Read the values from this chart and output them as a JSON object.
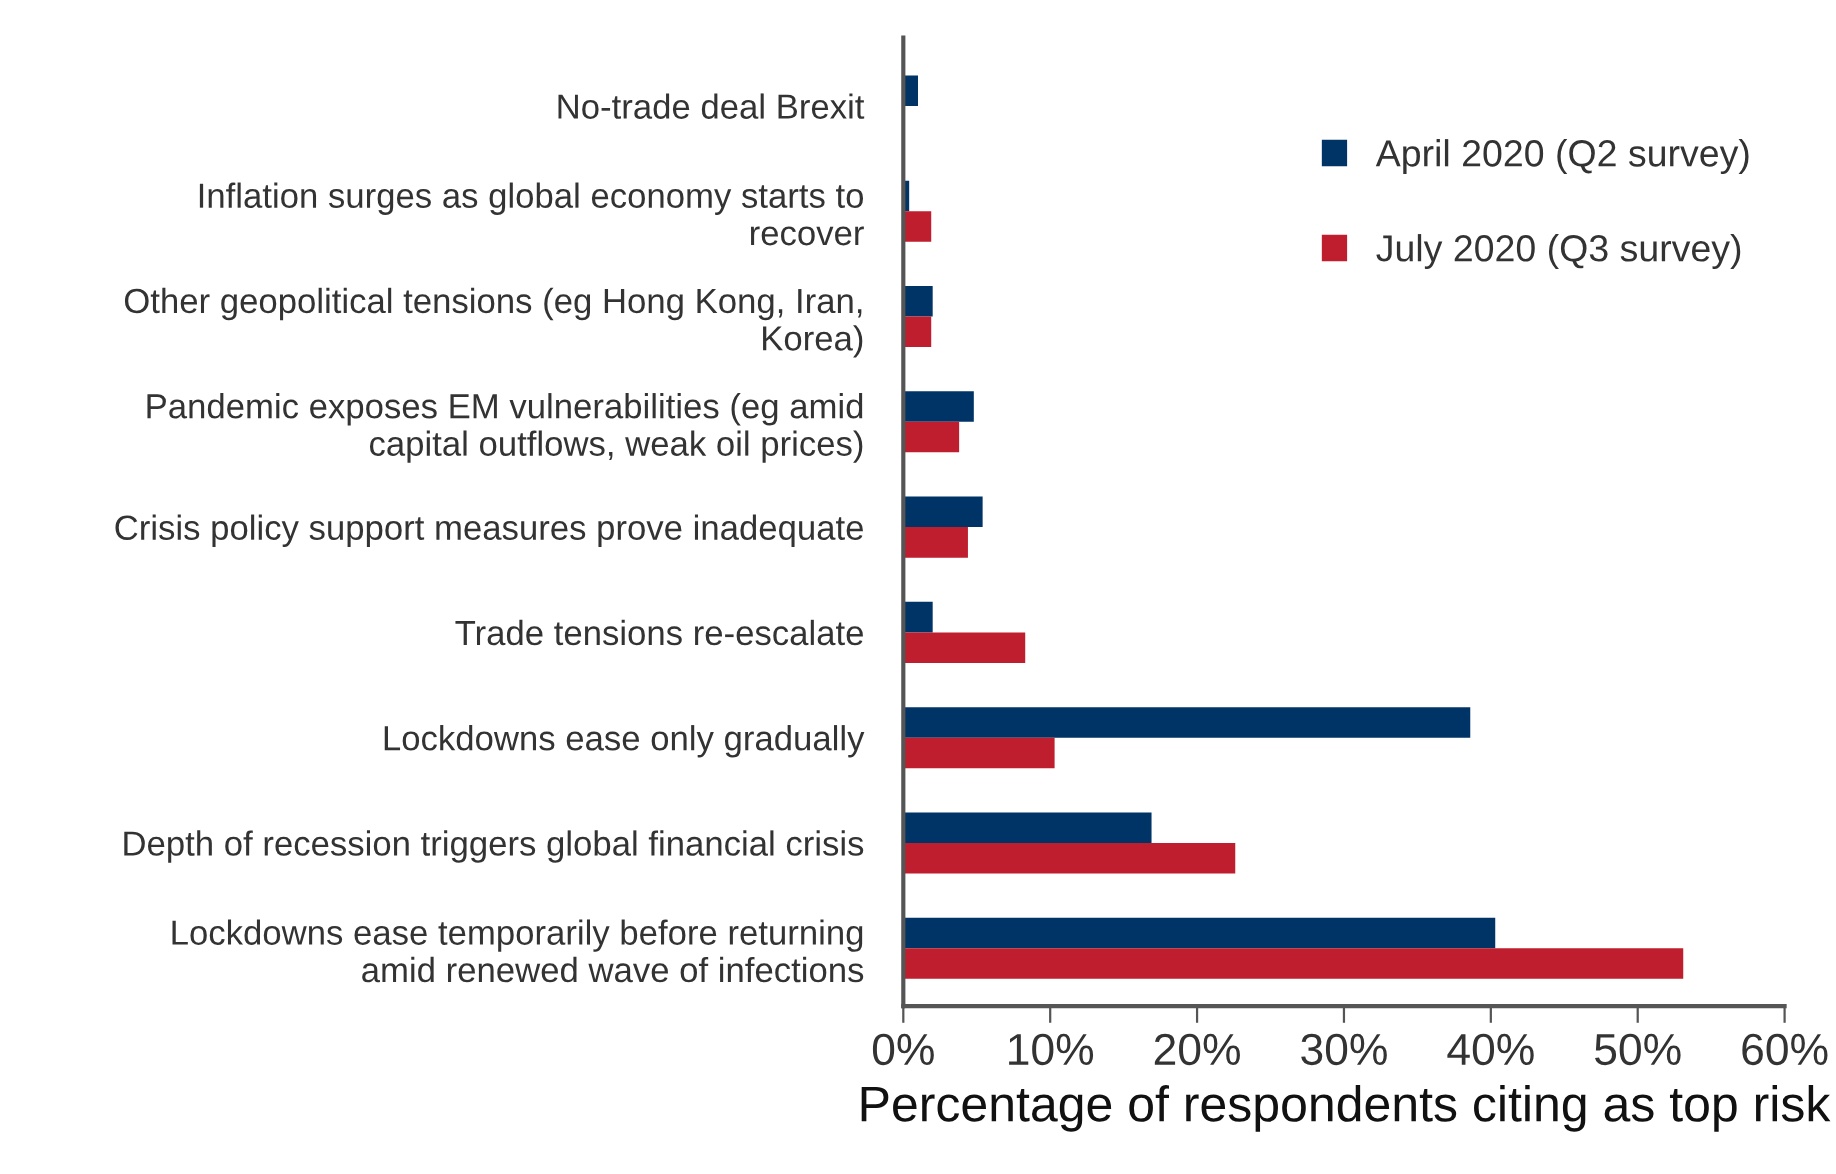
{
  "chart_data": {
    "type": "bar",
    "orientation": "horizontal",
    "xlabel": "Percentage of respondents citing as top risk",
    "categories": [
      "No-trade deal Brexit",
      "Inflation surges as global economy starts to\nrecover",
      "Other geopolitical tensions (eg Hong Kong, Iran,\nKorea)",
      "Pandemic exposes EM vulnerabilities (eg amid\ncapital outflows, weak oil prices)",
      "Crisis policy support measures prove inadequate",
      "Trade tensions re-escalate",
      "Lockdowns ease only gradually",
      "Depth of recession triggers global financial crisis",
      "Lockdowns ease temporarily before returning\namid renewed wave of infections"
    ],
    "series": [
      {
        "name": "April 2020 (Q2 survey)",
        "color": "#003366",
        "values": [
          1.0,
          0.4,
          2.0,
          4.8,
          5.4,
          2.0,
          38.6,
          16.9,
          40.3
        ]
      },
      {
        "name": "July 2020 (Q3 survey)",
        "color": "#be1e2d",
        "values": [
          0,
          1.9,
          1.9,
          3.8,
          4.4,
          8.3,
          10.3,
          22.6,
          53.1
        ]
      }
    ],
    "xlim": [
      0,
      60
    ],
    "xticks": [
      {
        "value": 0,
        "label": "0%"
      },
      {
        "value": 10,
        "label": "10%"
      },
      {
        "value": 20,
        "label": "20%"
      },
      {
        "value": 30,
        "label": "30%"
      },
      {
        "value": 40,
        "label": "40%"
      },
      {
        "value": 50,
        "label": "50%"
      },
      {
        "value": 60,
        "label": "60%"
      }
    ],
    "grid": false,
    "legend": "top right"
  }
}
